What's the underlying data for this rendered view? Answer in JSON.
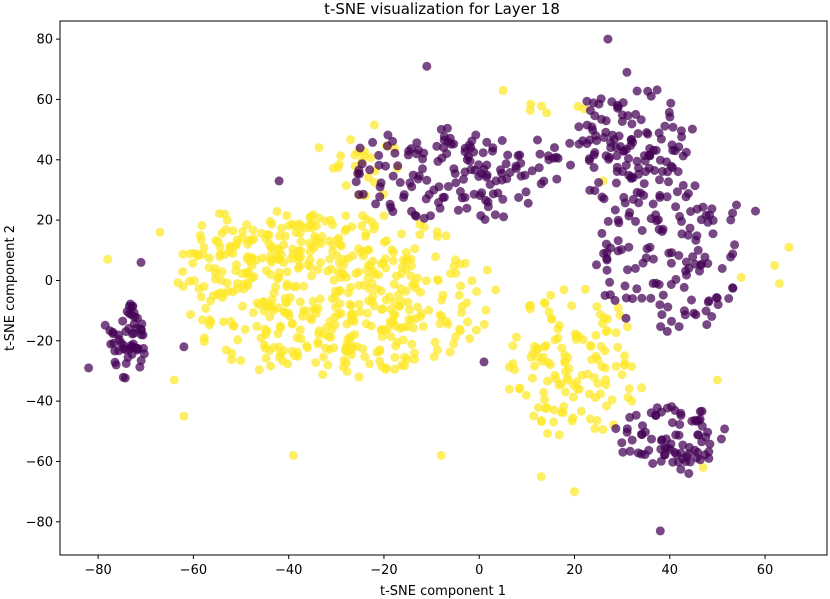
{
  "chart_data": {
    "type": "scatter",
    "title": "t-SNE visualization for Layer 18",
    "xlabel": "t-SNE component 1",
    "ylabel": "t-SNE component 2",
    "xlim": [
      -88,
      73
    ],
    "ylim": [
      -91,
      86
    ],
    "xticks": [
      -80,
      -60,
      -40,
      -20,
      0,
      20,
      40,
      60
    ],
    "yticks": [
      -80,
      -60,
      -40,
      -20,
      0,
      20,
      40,
      60,
      80
    ],
    "grid": false,
    "legend": "none",
    "marker_opacity": 0.72,
    "series": [
      {
        "color": "#fde725",
        "clusters": [
          {
            "cx": -30,
            "cy": -5,
            "rx": 34,
            "ry": 28,
            "n": 430,
            "seed": 11
          },
          {
            "cx": 20,
            "cy": -28,
            "rx": 16,
            "ry": 26,
            "n": 130,
            "seed": 12
          },
          {
            "cx": -45,
            "cy": 12,
            "rx": 20,
            "ry": 12,
            "n": 80,
            "seed": 13
          },
          {
            "cx": -25,
            "cy": 40,
            "rx": 10,
            "ry": 14,
            "n": 25,
            "seed": 14
          },
          {
            "cx": 15,
            "cy": 60,
            "rx": 8,
            "ry": 8,
            "n": 6,
            "seed": 15
          }
        ],
        "points": [
          {
            "x": 65,
            "y": 11
          },
          {
            "x": 62,
            "y": 5
          },
          {
            "x": 63,
            "y": -1
          },
          {
            "x": 55,
            "y": 1
          },
          {
            "x": 5,
            "y": 63
          },
          {
            "x": -39,
            "y": -58
          },
          {
            "x": 50,
            "y": -33
          },
          {
            "x": 47,
            "y": -62
          },
          {
            "x": -64,
            "y": -33
          },
          {
            "x": -62,
            "y": -45
          },
          {
            "x": 20,
            "y": -70
          },
          {
            "x": 13,
            "y": -65
          },
          {
            "x": 26,
            "y": 33
          },
          {
            "x": -8,
            "y": -58
          },
          {
            "x": -78,
            "y": 7
          },
          {
            "x": -67,
            "y": 16
          }
        ]
      },
      {
        "color": "#440154",
        "clusters": [
          {
            "cx": -74,
            "cy": -20,
            "rx": 5,
            "ry": 14,
            "n": 55,
            "seed": 21
          },
          {
            "cx": -5,
            "cy": 35,
            "rx": 26,
            "ry": 16,
            "n": 150,
            "seed": 22
          },
          {
            "cx": 32,
            "cy": 45,
            "rx": 14,
            "ry": 20,
            "n": 120,
            "seed": 23
          },
          {
            "cx": 40,
            "cy": 8,
            "rx": 16,
            "ry": 26,
            "n": 130,
            "seed": 24
          },
          {
            "cx": 40,
            "cy": -52,
            "rx": 12,
            "ry": 11,
            "n": 80,
            "seed": 25
          }
        ],
        "points": [
          {
            "x": 27,
            "y": 80
          },
          {
            "x": -11,
            "y": 71
          },
          {
            "x": 38,
            "y": -83
          },
          {
            "x": -82,
            "y": -29
          },
          {
            "x": -62,
            "y": -22
          },
          {
            "x": -71,
            "y": 6
          },
          {
            "x": 1,
            "y": -27
          },
          {
            "x": 58,
            "y": 23
          },
          {
            "x": 54,
            "y": 25
          },
          {
            "x": 44,
            "y": -64
          },
          {
            "x": -42,
            "y": 33
          },
          {
            "x": 31,
            "y": 69
          }
        ]
      }
    ]
  }
}
